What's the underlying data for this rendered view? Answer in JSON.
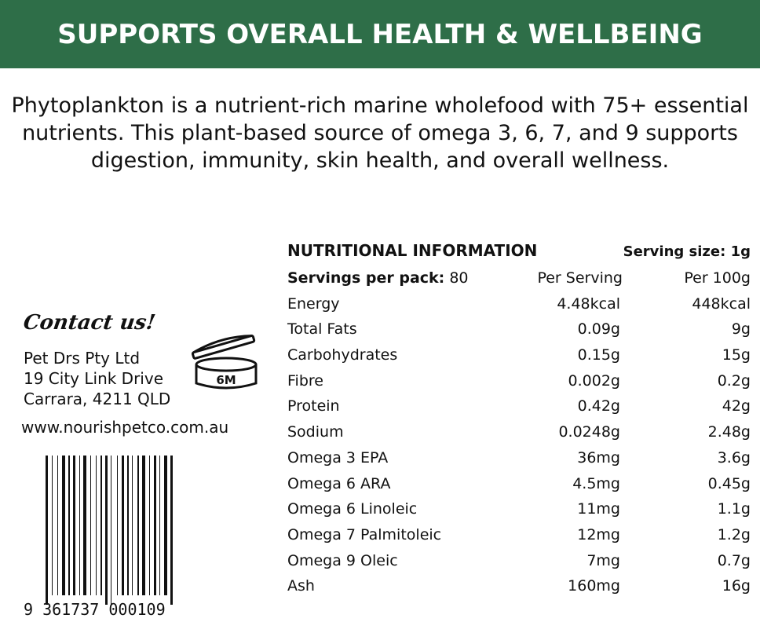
{
  "banner": {
    "title": "SUPPORTS OVERALL HEALTH & WELLBEING"
  },
  "intro": {
    "text": "Phytoplankton is a nutrient-rich marine wholefood with 75+ essential nutrients. This plant-based source of omega 3, 6, 7, and 9 supports digestion, immunity, skin health, and overall wellness."
  },
  "contact": {
    "heading": "Contact us!",
    "company": "Pet Drs Pty Ltd",
    "street": "19 City Link Drive",
    "city": "Carrara, 4211 QLD",
    "website": "www.nourishpetco.com.au"
  },
  "pao": {
    "label": "6M"
  },
  "barcode": {
    "digits": "9 361737 000109"
  },
  "nutrition": {
    "title": "NUTRITIONAL INFORMATION",
    "serving_size": "Serving size: 1g",
    "servings_label": "Servings per pack:",
    "servings_value": "80",
    "col_per_serving": "Per Serving",
    "col_per_100g": "Per 100g",
    "rows": [
      {
        "name": "Energy",
        "per_serving": "4.48kcal",
        "per_100g": "448kcal"
      },
      {
        "name": "Total Fats",
        "per_serving": "0.09g",
        "per_100g": "9g"
      },
      {
        "name": "Carbohydrates",
        "per_serving": "0.15g",
        "per_100g": "15g"
      },
      {
        "name": "Fibre",
        "per_serving": "0.002g",
        "per_100g": "0.2g"
      },
      {
        "name": "Protein",
        "per_serving": "0.42g",
        "per_100g": "42g"
      },
      {
        "name": "Sodium",
        "per_serving": "0.0248g",
        "per_100g": "2.48g"
      },
      {
        "name": "Omega 3 EPA",
        "per_serving": "36mg",
        "per_100g": "3.6g"
      },
      {
        "name": "Omega 6 ARA",
        "per_serving": "4.5mg",
        "per_100g": "0.45g"
      },
      {
        "name": "Omega 6 Linoleic",
        "per_serving": "11mg",
        "per_100g": "1.1g"
      },
      {
        "name": "Omega 7 Palmitoleic",
        "per_serving": "12mg",
        "per_100g": "1.2g"
      },
      {
        "name": "Omega 9 Oleic",
        "per_serving": "7mg",
        "per_100g": "0.7g"
      },
      {
        "name": "Ash",
        "per_serving": "160mg",
        "per_100g": "16g"
      }
    ]
  },
  "colors": {
    "banner": "#2e6e48",
    "text": "#111111"
  }
}
